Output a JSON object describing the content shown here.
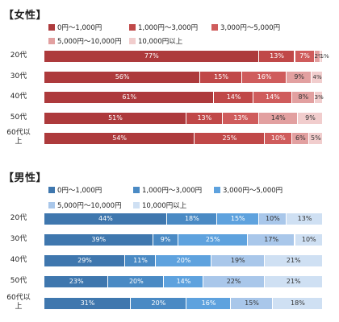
{
  "chart_data": [
    {
      "type": "bar",
      "orientation": "horizontal-stacked-100",
      "title": "【女性】",
      "categories": [
        "20代",
        "30代",
        "40代",
        "50代",
        "60代以上"
      ],
      "category_labels": [
        [
          "20代"
        ],
        [
          "30代"
        ],
        [
          "40代"
        ],
        [
          "50代"
        ],
        [
          "60代以",
          "上"
        ]
      ],
      "series": [
        {
          "name": "0円〜1,000円",
          "color": "#ad3a3c",
          "values": [
            77,
            56,
            61,
            51,
            54
          ],
          "labels": [
            "77%",
            "56%",
            "61%",
            "51%",
            "54%"
          ]
        },
        {
          "name": "1,000円〜3,000円",
          "color": "#c04848",
          "values": [
            13,
            15,
            14,
            13,
            25
          ],
          "labels": [
            "13%",
            "15%",
            "14%",
            "13%",
            "25%"
          ]
        },
        {
          "name": "3,000円〜5,000円",
          "color": "#cf5c5c",
          "values": [
            7,
            16,
            14,
            13,
            10
          ],
          "labels": [
            "7%",
            "16%",
            "14%",
            "13%",
            "10%"
          ]
        },
        {
          "name": "5,000円〜10,000円",
          "color": "#e2a0a0",
          "values": [
            2,
            9,
            8,
            14,
            6
          ],
          "labels": [
            "2%",
            "9%",
            "8%",
            "14%",
            "6%"
          ]
        },
        {
          "name": "10,000円以上",
          "color": "#f1cdcd",
          "values": [
            1,
            4,
            3,
            9,
            5
          ],
          "labels": [
            "1%",
            "4%",
            "3%",
            "9%",
            "5%"
          ]
        }
      ],
      "label_colors": [
        "#ffffff",
        "#ffffff",
        "#ffffff",
        "#333333",
        "#333333"
      ],
      "legend_position": "top"
    },
    {
      "type": "bar",
      "orientation": "horizontal-stacked-100",
      "title": "【男性】",
      "categories": [
        "20代",
        "30代",
        "40代",
        "50代",
        "60代以上"
      ],
      "category_labels": [
        [
          "20代"
        ],
        [
          "30代"
        ],
        [
          "40代"
        ],
        [
          "50代"
        ],
        [
          "60代以",
          "上"
        ]
      ],
      "series": [
        {
          "name": "0円〜1,000円",
          "color": "#3f77ae",
          "values": [
            44,
            39,
            29,
            23,
            31
          ],
          "labels": [
            "44%",
            "39%",
            "29%",
            "23%",
            "31%"
          ]
        },
        {
          "name": "1,000円〜3,000円",
          "color": "#4a8ac4",
          "values": [
            18,
            9,
            11,
            20,
            20
          ],
          "labels": [
            "18%",
            "9%",
            "11%",
            "20%",
            "20%"
          ]
        },
        {
          "name": "3,000円〜5,000円",
          "color": "#5ea2de",
          "values": [
            15,
            25,
            20,
            14,
            16
          ],
          "labels": [
            "15%",
            "25%",
            "20%",
            "14%",
            "16%"
          ]
        },
        {
          "name": "5,000円〜10,000円",
          "color": "#a9c7ea",
          "values": [
            10,
            17,
            19,
            22,
            15
          ],
          "labels": [
            "10%",
            "17%",
            "19%",
            "22%",
            "15%"
          ]
        },
        {
          "name": "10,000円以上",
          "color": "#cfe0f3",
          "values": [
            13,
            10,
            21,
            21,
            18
          ],
          "labels": [
            "13%",
            "10%",
            "21%",
            "21%",
            "18%"
          ]
        }
      ],
      "label_colors": [
        "#ffffff",
        "#ffffff",
        "#ffffff",
        "#333333",
        "#333333"
      ],
      "legend_position": "top"
    }
  ]
}
